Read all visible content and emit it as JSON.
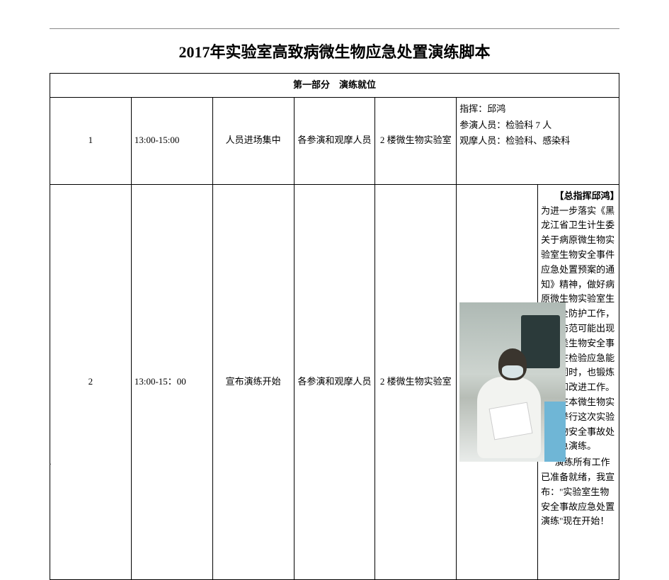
{
  "title": "2017年实验室高致病微生物应急处置演练脚本",
  "section_header": "第一部分　演练就位",
  "rows": [
    {
      "idx": "1",
      "time": "13:00-15:00",
      "event": "人员进场集中",
      "people": "各参演和观摩人员",
      "location": "2 楼微生物实验室",
      "content_lines": [
        "指挥：邱鸿",
        "参演人员：检验科 7 人",
        "观摩人员：检验科、感染科"
      ]
    },
    {
      "idx": "2",
      "time": "13:00-15：00",
      "event": "宣布演练开始",
      "people": "各参演和观摩人员",
      "location": "2 楼微生物实验室",
      "content_html": {
        "lead": "【总指挥邱鸿】",
        "body1": "为进一步落实《黑龙江省卫生计生委关于病原微生物实验室生物安全事件应急处置预案的通知》精神，做好病原微生物实验室生物安全防护工作，主动防范可能出现的各类生物安全事故，在检验应急能力的同时，也锻炼队伍和改进工作。今天在本微生物实验室举行这次实验室生物安全事故处置应急演练。",
        "body2": "演练所有工作已准备就绪，我宣布：\"实验室生物安全事故应急处置演练\"现在开始！"
      }
    }
  ],
  "page_num": "."
}
